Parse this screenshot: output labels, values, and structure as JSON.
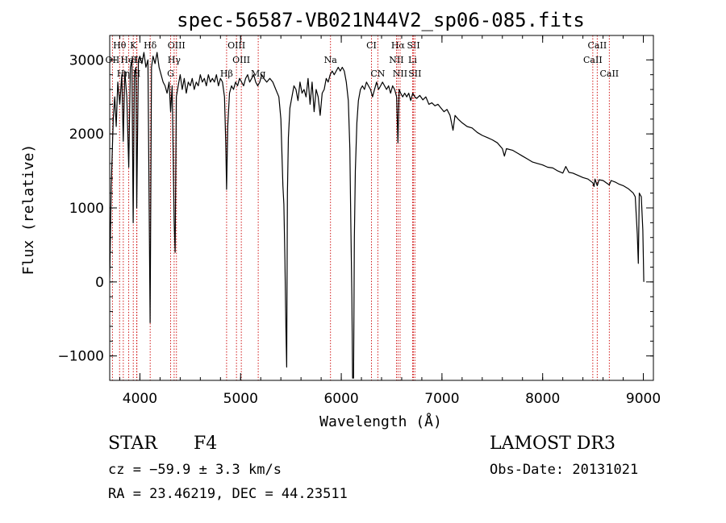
{
  "chart_data": {
    "type": "line",
    "title": "spec-56587-VB021N44V2_sp06-085.fits",
    "xlabel": "Wavelength (Å)",
    "ylabel": "Flux (relative)",
    "xlim": [
      3700,
      9100
    ],
    "ylim": [
      -1330,
      3330
    ],
    "xticks": [
      4000,
      5000,
      6000,
      7000,
      8000,
      9000
    ],
    "xtick_labels": [
      "4000",
      "5000",
      "6000",
      "7000",
      "8000",
      "9000"
    ],
    "yticks": [
      -1000,
      0,
      1000,
      2000,
      3000
    ],
    "ytick_labels": [
      "−1000",
      "0",
      "1000",
      "2000",
      "3000"
    ],
    "grid": false,
    "series": [
      {
        "name": "flux",
        "color": "#000000",
        "points": [
          [
            3700,
            50
          ],
          [
            3715,
            1300
          ],
          [
            3735,
            2200
          ],
          [
            3750,
            2500
          ],
          [
            3765,
            2100
          ],
          [
            3780,
            2700
          ],
          [
            3800,
            2400
          ],
          [
            3820,
            2800
          ],
          [
            3835,
            1900
          ],
          [
            3850,
            2850
          ],
          [
            3870,
            2500
          ],
          [
            3889,
            1550
          ],
          [
            3905,
            2900
          ],
          [
            3920,
            3000
          ],
          [
            3933,
            800
          ],
          [
            3945,
            2800
          ],
          [
            3960,
            2900
          ],
          [
            3968,
            1000
          ],
          [
            3985,
            3000
          ],
          [
            4000,
            3050
          ],
          [
            4020,
            2950
          ],
          [
            4040,
            3100
          ],
          [
            4060,
            2900
          ],
          [
            4080,
            3000
          ],
          [
            4101,
            -550
          ],
          [
            4115,
            2900
          ],
          [
            4130,
            3050
          ],
          [
            4150,
            2950
          ],
          [
            4170,
            3100
          ],
          [
            4190,
            2900
          ],
          [
            4210,
            2800
          ],
          [
            4230,
            2700
          ],
          [
            4250,
            2650
          ],
          [
            4270,
            2550
          ],
          [
            4290,
            2700
          ],
          [
            4305,
            2300
          ],
          [
            4320,
            2650
          ],
          [
            4340,
            800
          ],
          [
            4350,
            400
          ],
          [
            4362,
            2500
          ],
          [
            4380,
            2650
          ],
          [
            4400,
            2800
          ],
          [
            4420,
            2600
          ],
          [
            4440,
            2750
          ],
          [
            4460,
            2550
          ],
          [
            4480,
            2700
          ],
          [
            4500,
            2650
          ],
          [
            4520,
            2750
          ],
          [
            4540,
            2600
          ],
          [
            4560,
            2700
          ],
          [
            4580,
            2650
          ],
          [
            4600,
            2800
          ],
          [
            4620,
            2700
          ],
          [
            4640,
            2750
          ],
          [
            4660,
            2650
          ],
          [
            4680,
            2800
          ],
          [
            4700,
            2700
          ],
          [
            4720,
            2750
          ],
          [
            4740,
            2700
          ],
          [
            4760,
            2800
          ],
          [
            4780,
            2650
          ],
          [
            4800,
            2750
          ],
          [
            4820,
            2700
          ],
          [
            4840,
            2500
          ],
          [
            4852,
            1900
          ],
          [
            4861,
            1250
          ],
          [
            4872,
            2100
          ],
          [
            4890,
            2550
          ],
          [
            4910,
            2650
          ],
          [
            4930,
            2600
          ],
          [
            4950,
            2700
          ],
          [
            4970,
            2650
          ],
          [
            4990,
            2750
          ],
          [
            5010,
            2700
          ],
          [
            5030,
            2650
          ],
          [
            5050,
            2750
          ],
          [
            5070,
            2800
          ],
          [
            5090,
            2700
          ],
          [
            5110,
            2750
          ],
          [
            5130,
            2800
          ],
          [
            5150,
            2700
          ],
          [
            5170,
            2650
          ],
          [
            5190,
            2700
          ],
          [
            5210,
            2800
          ],
          [
            5230,
            2750
          ],
          [
            5260,
            2700
          ],
          [
            5290,
            2750
          ],
          [
            5320,
            2700
          ],
          [
            5350,
            2600
          ],
          [
            5380,
            2500
          ],
          [
            5400,
            2200
          ],
          [
            5420,
            1300
          ],
          [
            5430,
            1050
          ],
          [
            5440,
            300
          ],
          [
            5450,
            -600
          ],
          [
            5458,
            -1150
          ],
          [
            5465,
            1200
          ],
          [
            5475,
            1950
          ],
          [
            5490,
            2350
          ],
          [
            5510,
            2500
          ],
          [
            5530,
            2650
          ],
          [
            5550,
            2600
          ],
          [
            5570,
            2450
          ],
          [
            5590,
            2700
          ],
          [
            5610,
            2550
          ],
          [
            5630,
            2600
          ],
          [
            5650,
            2500
          ],
          [
            5670,
            2750
          ],
          [
            5690,
            2400
          ],
          [
            5710,
            2700
          ],
          [
            5730,
            2300
          ],
          [
            5750,
            2600
          ],
          [
            5770,
            2500
          ],
          [
            5790,
            2250
          ],
          [
            5810,
            2550
          ],
          [
            5830,
            2600
          ],
          [
            5850,
            2750
          ],
          [
            5870,
            2700
          ],
          [
            5890,
            2800
          ],
          [
            5910,
            2850
          ],
          [
            5930,
            2800
          ],
          [
            5950,
            2850
          ],
          [
            5970,
            2900
          ],
          [
            5990,
            2850
          ],
          [
            6010,
            2900
          ],
          [
            6030,
            2850
          ],
          [
            6050,
            2700
          ],
          [
            6070,
            2450
          ],
          [
            6085,
            1800
          ],
          [
            6095,
            800
          ],
          [
            6105,
            -200
          ],
          [
            6112,
            -1300
          ],
          [
            6122,
            -1300
          ],
          [
            6130,
            600
          ],
          [
            6140,
            1500
          ],
          [
            6155,
            2150
          ],
          [
            6170,
            2450
          ],
          [
            6190,
            2600
          ],
          [
            6210,
            2650
          ],
          [
            6230,
            2600
          ],
          [
            6250,
            2700
          ],
          [
            6270,
            2650
          ],
          [
            6290,
            2600
          ],
          [
            6310,
            2500
          ],
          [
            6330,
            2600
          ],
          [
            6350,
            2700
          ],
          [
            6370,
            2600
          ],
          [
            6390,
            2650
          ],
          [
            6410,
            2700
          ],
          [
            6430,
            2650
          ],
          [
            6450,
            2600
          ],
          [
            6470,
            2650
          ],
          [
            6490,
            2550
          ],
          [
            6510,
            2650
          ],
          [
            6530,
            2600
          ],
          [
            6550,
            2500
          ],
          [
            6563,
            1880
          ],
          [
            6575,
            2600
          ],
          [
            6590,
            2550
          ],
          [
            6610,
            2500
          ],
          [
            6630,
            2550
          ],
          [
            6650,
            2500
          ],
          [
            6670,
            2550
          ],
          [
            6690,
            2450
          ],
          [
            6710,
            2550
          ],
          [
            6730,
            2500
          ],
          [
            6750,
            2480
          ],
          [
            6780,
            2520
          ],
          [
            6810,
            2460
          ],
          [
            6840,
            2500
          ],
          [
            6870,
            2400
          ],
          [
            6900,
            2420
          ],
          [
            6930,
            2380
          ],
          [
            6960,
            2400
          ],
          [
            6990,
            2350
          ],
          [
            7020,
            2300
          ],
          [
            7050,
            2330
          ],
          [
            7080,
            2250
          ],
          [
            7110,
            2050
          ],
          [
            7130,
            2250
          ],
          [
            7160,
            2200
          ],
          [
            7200,
            2150
          ],
          [
            7250,
            2100
          ],
          [
            7300,
            2080
          ],
          [
            7350,
            2020
          ],
          [
            7400,
            1980
          ],
          [
            7450,
            1950
          ],
          [
            7500,
            1920
          ],
          [
            7550,
            1880
          ],
          [
            7600,
            1800
          ],
          [
            7620,
            1700
          ],
          [
            7640,
            1800
          ],
          [
            7700,
            1780
          ],
          [
            7750,
            1740
          ],
          [
            7800,
            1700
          ],
          [
            7850,
            1660
          ],
          [
            7900,
            1620
          ],
          [
            7950,
            1600
          ],
          [
            8000,
            1580
          ],
          [
            8050,
            1550
          ],
          [
            8100,
            1540
          ],
          [
            8150,
            1500
          ],
          [
            8200,
            1470
          ],
          [
            8230,
            1560
          ],
          [
            8260,
            1480
          ],
          [
            8300,
            1470
          ],
          [
            8350,
            1440
          ],
          [
            8400,
            1410
          ],
          [
            8450,
            1390
          ],
          [
            8498,
            1340
          ],
          [
            8510,
            1290
          ],
          [
            8520,
            1390
          ],
          [
            8542,
            1300
          ],
          [
            8560,
            1380
          ],
          [
            8600,
            1370
          ],
          [
            8662,
            1310
          ],
          [
            8680,
            1370
          ],
          [
            8720,
            1350
          ],
          [
            8760,
            1320
          ],
          [
            8800,
            1300
          ],
          [
            8850,
            1260
          ],
          [
            8900,
            1200
          ],
          [
            8920,
            1150
          ],
          [
            8940,
            650
          ],
          [
            8950,
            250
          ],
          [
            8960,
            1200
          ],
          [
            8980,
            1150
          ],
          [
            8995,
            700
          ],
          [
            9005,
            0
          ]
        ]
      }
    ],
    "line_markers": [
      {
        "label": "Hθ",
        "wavelength": 3798,
        "row": 1
      },
      {
        "label": "K",
        "wavelength": 3934,
        "row": 1
      },
      {
        "label": "Hδ",
        "wavelength": 4102,
        "row": 1
      },
      {
        "label": "OIII",
        "wavelength": 4363,
        "row": 1
      },
      {
        "label": "OIII",
        "wavelength": 4959,
        "row": 1
      },
      {
        "label": "CI",
        "wavelength": 6300,
        "row": 1
      },
      {
        "label": "Hα",
        "wavelength": 6563,
        "row": 1
      },
      {
        "label": "SII",
        "wavelength": 6717,
        "row": 1
      },
      {
        "label": "CaII",
        "wavelength": 8542,
        "row": 1
      },
      {
        "label": "OII",
        "wavelength": 3727,
        "row": 2
      },
      {
        "label": "HeI",
        "wavelength": 3889,
        "row": 2
      },
      {
        "label": "Hε",
        "wavelength": 3970,
        "row": 2
      },
      {
        "label": "Hγ",
        "wavelength": 4340,
        "row": 2
      },
      {
        "label": "OIII",
        "wavelength": 5007,
        "row": 2
      },
      {
        "label": "Na",
        "wavelength": 5893,
        "row": 2
      },
      {
        "label": "NII",
        "wavelength": 6548,
        "row": 2
      },
      {
        "label": "Li",
        "wavelength": 6708,
        "row": 2
      },
      {
        "label": "CaII",
        "wavelength": 8498,
        "row": 2
      },
      {
        "label": "Hη",
        "wavelength": 3835,
        "row": 3
      },
      {
        "label": "H",
        "wavelength": 3968,
        "row": 3
      },
      {
        "label": "G",
        "wavelength": 4305,
        "row": 3
      },
      {
        "label": "Hβ",
        "wavelength": 4861,
        "row": 3
      },
      {
        "label": "Mg",
        "wavelength": 5175,
        "row": 3
      },
      {
        "label": "CN",
        "wavelength": 6363,
        "row": 3
      },
      {
        "label": "NII",
        "wavelength": 6584,
        "row": 3
      },
      {
        "label": "SII",
        "wavelength": 6731,
        "row": 3
      },
      {
        "label": "CaII",
        "wavelength": 8662,
        "row": 3
      }
    ],
    "line_marker_color": "#cc0000"
  },
  "footer": {
    "object_type": "STAR",
    "subclass": "F4",
    "cz": "cz = −59.9 ± 3.3 km/s",
    "coords": "RA =  23.46219, DEC =  44.23511",
    "survey": "LAMOST DR3",
    "obs_date": "Obs-Date: 20131021"
  }
}
